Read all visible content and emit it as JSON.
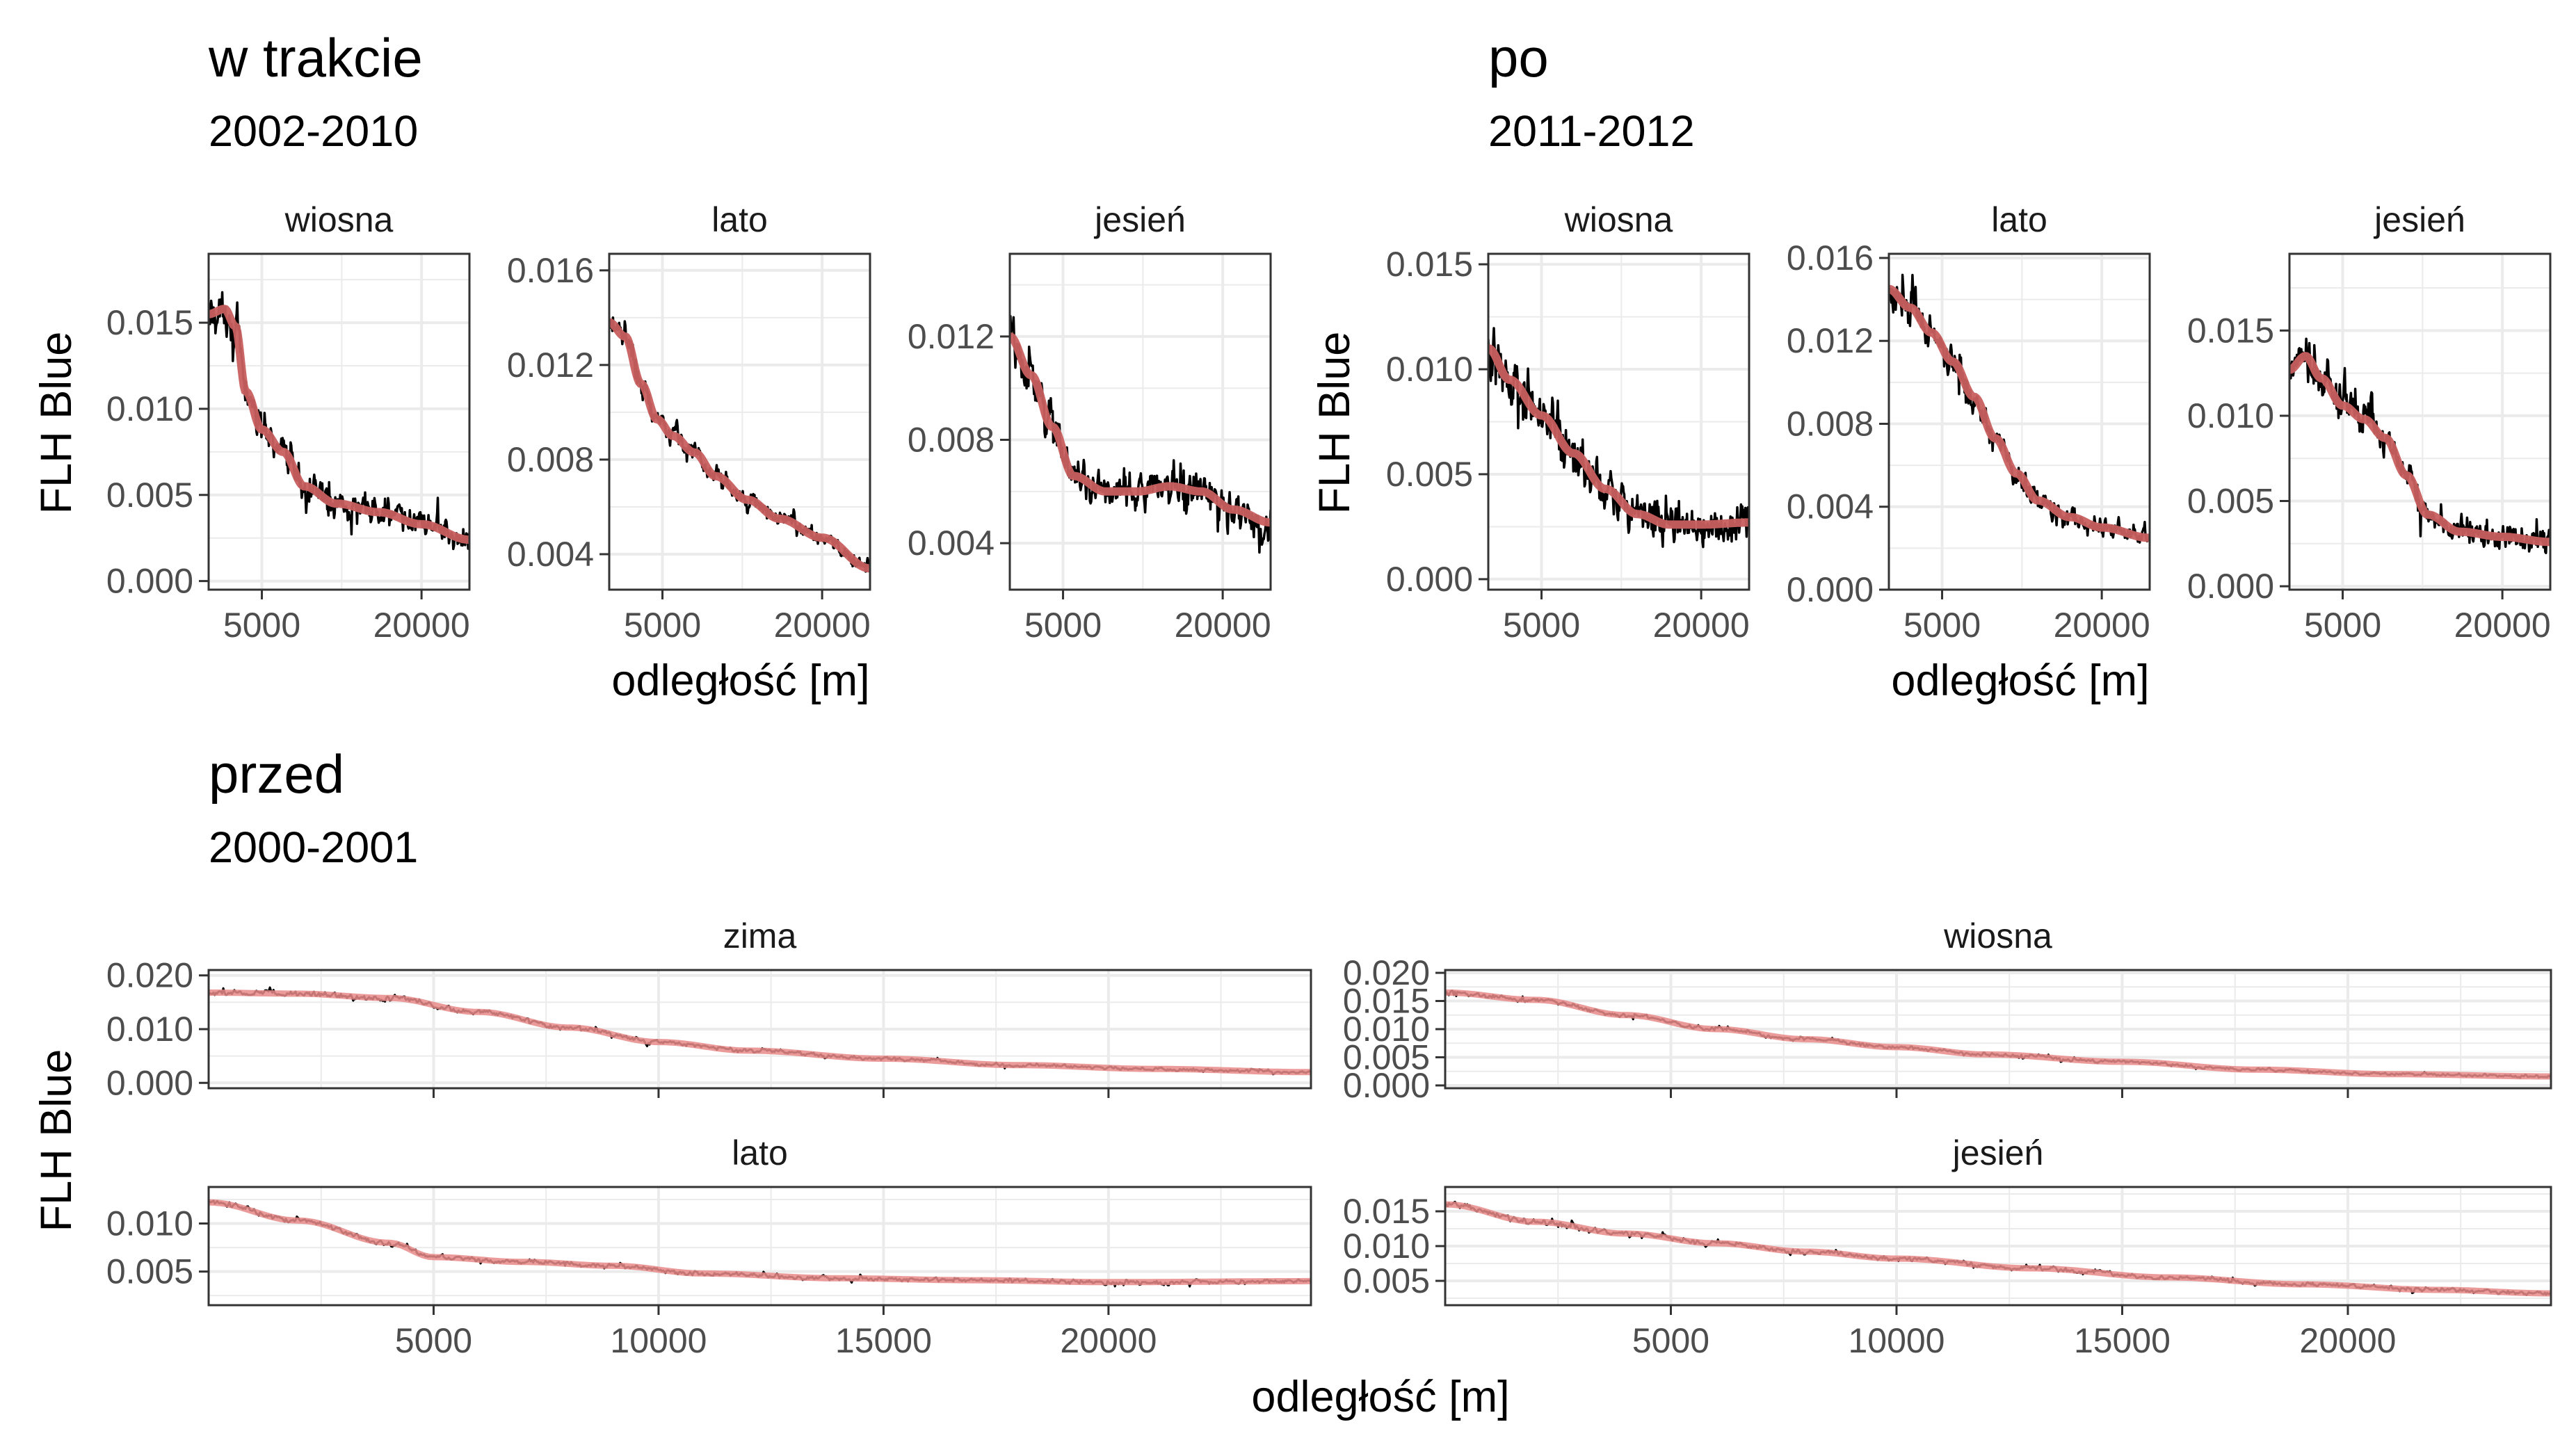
{
  "chart_data": [
    {
      "type": "line",
      "title": "w trakcie",
      "subtitle": "2002-2010",
      "xlabel": "odległość [m]",
      "ylabel": "FLH Blue",
      "xlim": [
        0,
        24500
      ],
      "x_ticks": [
        5000,
        20000
      ],
      "x_tick_labels": [
        "5000",
        "20000"
      ],
      "grid": true,
      "series_style": {
        "raw_color": "#000000",
        "smooth_color": "#c8605f"
      },
      "panels": [
        {
          "strip": "wiosna",
          "ylim": [
            -0.0005,
            0.019
          ],
          "y_ticks": [
            0,
            0.005,
            0.01,
            0.015
          ],
          "y_tick_labels": [
            "0.000",
            "0.005",
            "0.010",
            "0.015"
          ],
          "noise": 0.0028,
          "trend": {
            "x": [
              0,
              1500,
              2500,
              3500,
              5000,
              7000,
              9000,
              12000,
              16000,
              20000,
              24500
            ],
            "y": [
              0.0155,
              0.0158,
              0.0148,
              0.011,
              0.0088,
              0.0075,
              0.0055,
              0.0045,
              0.004,
              0.0033,
              0.0024
            ]
          }
        },
        {
          "strip": "lato",
          "ylim": [
            0.0025,
            0.0167
          ],
          "y_ticks": [
            0.004,
            0.008,
            0.012,
            0.016
          ],
          "y_tick_labels": [
            "0.004",
            "0.008",
            "0.012",
            "0.016"
          ],
          "noise": 0.0011,
          "trend": {
            "x": [
              0,
              1500,
              3000,
              4500,
              6000,
              8000,
              10000,
              13000,
              16000,
              20000,
              24500
            ],
            "y": [
              0.0138,
              0.0132,
              0.0112,
              0.0097,
              0.009,
              0.0083,
              0.0073,
              0.0063,
              0.0055,
              0.0047,
              0.0034
            ]
          }
        },
        {
          "strip": "jesień",
          "ylim": [
            0.0022,
            0.0152
          ],
          "y_ticks": [
            0.004,
            0.008,
            0.012
          ],
          "y_tick_labels": [
            "0.004",
            "0.008",
            "0.012"
          ],
          "noise": 0.0022,
          "trend": {
            "x": [
              0,
              2000,
              4000,
              6000,
              9000,
              12000,
              15000,
              18000,
              21000,
              24500
            ],
            "y": [
              0.012,
              0.0105,
              0.0085,
              0.0066,
              0.006,
              0.006,
              0.0062,
              0.006,
              0.0053,
              0.0048
            ]
          }
        }
      ]
    },
    {
      "type": "line",
      "title": "po",
      "subtitle": "2011-2012",
      "xlabel": "odległość [m]",
      "ylabel": "FLH Blue",
      "xlim": [
        0,
        24500
      ],
      "x_ticks": [
        5000,
        20000
      ],
      "x_tick_labels": [
        "5000",
        "20000"
      ],
      "grid": true,
      "series_style": {
        "raw_color": "#000000",
        "smooth_color": "#c8605f"
      },
      "panels": [
        {
          "strip": "wiosna",
          "ylim": [
            -0.0005,
            0.0155
          ],
          "y_ticks": [
            0,
            0.005,
            0.01,
            0.015
          ],
          "y_tick_labels": [
            "0.000",
            "0.005",
            "0.010",
            "0.015"
          ],
          "noise": 0.0032,
          "trend": {
            "x": [
              0,
              2000,
              5000,
              8000,
              11000,
              14000,
              17000,
              20000,
              24500
            ],
            "y": [
              0.011,
              0.0095,
              0.0078,
              0.006,
              0.0043,
              0.0031,
              0.0026,
              0.0026,
              0.0027
            ]
          }
        },
        {
          "strip": "lato",
          "ylim": [
            0.0,
            0.0162
          ],
          "y_ticks": [
            0,
            0.004,
            0.008,
            0.012,
            0.016
          ],
          "y_tick_labels": [
            "0.000",
            "0.004",
            "0.008",
            "0.012",
            "0.016"
          ],
          "noise": 0.0018,
          "trend": {
            "x": [
              0,
              2000,
              4000,
              6000,
              8000,
              10000,
              12000,
              14000,
              17000,
              20000,
              24500
            ],
            "y": [
              0.0145,
              0.0136,
              0.0124,
              0.011,
              0.0093,
              0.0073,
              0.0056,
              0.0043,
              0.0035,
              0.003,
              0.0025
            ]
          }
        },
        {
          "strip": "jesień",
          "ylim": [
            -0.0002,
            0.0195
          ],
          "y_ticks": [
            0,
            0.005,
            0.01,
            0.015
          ],
          "y_tick_labels": [
            "0.000",
            "0.005",
            "0.010",
            "0.015"
          ],
          "noise": 0.0028,
          "trend": {
            "x": [
              0,
              1500,
              3000,
              5000,
              7000,
              9000,
              11000,
              13000,
              16000,
              20000,
              24500
            ],
            "y": [
              0.0127,
              0.0135,
              0.0122,
              0.0106,
              0.0098,
              0.0087,
              0.0065,
              0.0042,
              0.0032,
              0.0029,
              0.0026
            ]
          }
        }
      ]
    },
    {
      "type": "line",
      "title": "przed",
      "subtitle": "2000-2001",
      "xlabel": "odległość [m]",
      "ylabel": "FLH Blue",
      "xlim": [
        0,
        24500
      ],
      "x_ticks": [
        5000,
        10000,
        15000,
        20000
      ],
      "x_tick_labels": [
        "5000",
        "10000",
        "15000",
        "20000"
      ],
      "grid": true,
      "series_style": {
        "raw_color": "#000000",
        "smooth_color": "#e88a87"
      },
      "panels": [
        {
          "strip": "zima",
          "ylim": [
            -0.001,
            0.021
          ],
          "y_ticks": [
            0,
            0.01,
            0.02
          ],
          "y_tick_labels": [
            "0.000",
            "0.010",
            "0.020"
          ],
          "noise": 0.0012,
          "trend": {
            "x": [
              0,
              2000,
              4000,
              6000,
              8000,
              10000,
              12000,
              15000,
              18000,
              21000,
              24500
            ],
            "y": [
              0.0168,
              0.0166,
              0.0158,
              0.0132,
              0.0103,
              0.0076,
              0.006,
              0.0045,
              0.0033,
              0.0026,
              0.002
            ]
          }
        },
        {
          "strip": "lato",
          "ylim": [
            0.0015,
            0.0138
          ],
          "y_ticks": [
            0.005,
            0.01
          ],
          "y_tick_labels": [
            "0.005",
            "0.010"
          ],
          "noise": 0.0007,
          "trend": {
            "x": [
              0,
              2000,
              4000,
              5000,
              7000,
              9000,
              11000,
              14000,
              17000,
              20000,
              24500
            ],
            "y": [
              0.0122,
              0.0103,
              0.008,
              0.0065,
              0.006,
              0.0056,
              0.0048,
              0.0043,
              0.0041,
              0.0039,
              0.004
            ]
          }
        },
        {
          "strip": "wiosna",
          "ylim": [
            -0.0005,
            0.0205
          ],
          "y_ticks": [
            0,
            0.005,
            0.01,
            0.015,
            0.02
          ],
          "y_tick_labels": [
            "0.000",
            "0.005",
            "0.010",
            "0.015",
            "0.020"
          ],
          "noise": 0.001,
          "trend": {
            "x": [
              0,
              2000,
              4000,
              6000,
              8000,
              10000,
              12000,
              15000,
              18000,
              21000,
              24500
            ],
            "y": [
              0.0165,
              0.0152,
              0.0125,
              0.01,
              0.0082,
              0.0068,
              0.0055,
              0.0042,
              0.0028,
              0.002,
              0.0016
            ]
          }
        },
        {
          "strip": "jesień",
          "ylim": [
            0.0015,
            0.0185
          ],
          "y_ticks": [
            0.005,
            0.01,
            0.015
          ],
          "y_tick_labels": [
            "0.005",
            "0.010",
            "0.015"
          ],
          "noise": 0.001,
          "trend": {
            "x": [
              0,
              2000,
              4000,
              6000,
              8000,
              10000,
              13000,
              16000,
              19000,
              22000,
              24500
            ],
            "y": [
              0.016,
              0.0135,
              0.0118,
              0.0104,
              0.0092,
              0.0082,
              0.0068,
              0.0055,
              0.0045,
              0.0037,
              0.0032
            ]
          }
        }
      ]
    }
  ]
}
